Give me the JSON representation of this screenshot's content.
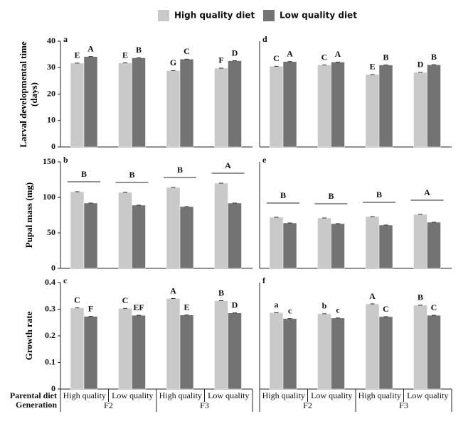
{
  "chart_data": [
    {
      "type": "bar",
      "panel": "a",
      "ylabel": "Larval developmental time (days)",
      "ylim": [
        0,
        40
      ],
      "yticks": [
        0,
        10,
        20,
        30,
        40
      ],
      "series": [
        {
          "name": "High quality diet",
          "color": "#c9c9c9",
          "values": [
            31.7,
            31.8,
            28.9,
            29.8
          ],
          "letters": [
            "E",
            "E",
            "G",
            "F"
          ]
        },
        {
          "name": "Low quality diet",
          "color": "#737373",
          "values": [
            34.2,
            33.7,
            33.2,
            32.6
          ],
          "letters": [
            "A",
            "B",
            "C",
            "D"
          ]
        }
      ]
    },
    {
      "type": "bar",
      "panel": "b",
      "ylabel": "Pupal mass (mg)",
      "ylim": [
        0,
        150
      ],
      "yticks": [
        0,
        50,
        100,
        150
      ],
      "group_letters": [
        "B",
        "B",
        "B",
        "A"
      ],
      "series": [
        {
          "color": "#c9c9c9",
          "values": [
            108,
            107,
            114,
            120
          ]
        },
        {
          "color": "#737373",
          "values": [
            92,
            89,
            87,
            92
          ]
        }
      ]
    },
    {
      "type": "bar",
      "panel": "c",
      "ylabel": "Growth rate",
      "ylim": [
        0,
        0.4
      ],
      "yticks": [
        0,
        0.1,
        0.2,
        0.3,
        0.4
      ],
      "categories": [
        "High quality",
        "Low quality",
        "High quality",
        "Low quality"
      ],
      "groups": [
        "F2",
        "F3"
      ],
      "axis_row_labels": [
        "Parental diet",
        "Generation"
      ],
      "series": [
        {
          "color": "#c9c9c9",
          "values": [
            0.305,
            0.303,
            0.34,
            0.332
          ],
          "letters": [
            "C",
            "C",
            "A",
            "B"
          ]
        },
        {
          "color": "#737373",
          "values": [
            0.273,
            0.277,
            0.278,
            0.286
          ],
          "letters": [
            "F",
            "EF",
            "E",
            "D"
          ]
        }
      ]
    },
    {
      "type": "bar",
      "panel": "d",
      "ylim": [
        0,
        40
      ],
      "series": [
        {
          "color": "#c9c9c9",
          "values": [
            30.5,
            31.0,
            27.4,
            28.2
          ],
          "letters": [
            "C",
            "C",
            "E",
            "D"
          ]
        },
        {
          "color": "#737373",
          "values": [
            32.3,
            32.1,
            31.0,
            31.1
          ],
          "letters": [
            "A",
            "A",
            "B",
            "B"
          ]
        }
      ]
    },
    {
      "type": "bar",
      "panel": "e",
      "ylim": [
        0,
        150
      ],
      "group_letters": [
        "B",
        "B",
        "B",
        "A"
      ],
      "series": [
        {
          "color": "#c9c9c9",
          "values": [
            72,
            71,
            73,
            76
          ]
        },
        {
          "color": "#737373",
          "values": [
            64,
            63,
            61,
            65
          ]
        }
      ]
    },
    {
      "type": "bar",
      "panel": "f",
      "ylim": [
        0,
        0.4
      ],
      "categories": [
        "High quality",
        "Low quality",
        "High quality",
        "Low quality"
      ],
      "groups": [
        "F2",
        "F3"
      ],
      "series": [
        {
          "color": "#c9c9c9",
          "values": [
            0.287,
            0.283,
            0.32,
            0.315
          ],
          "letters": [
            "a",
            "b",
            "A",
            "B"
          ]
        },
        {
          "color": "#737373",
          "values": [
            0.265,
            0.267,
            0.272,
            0.277
          ],
          "letters": [
            "c",
            "c",
            "C",
            "C"
          ]
        }
      ]
    }
  ]
}
